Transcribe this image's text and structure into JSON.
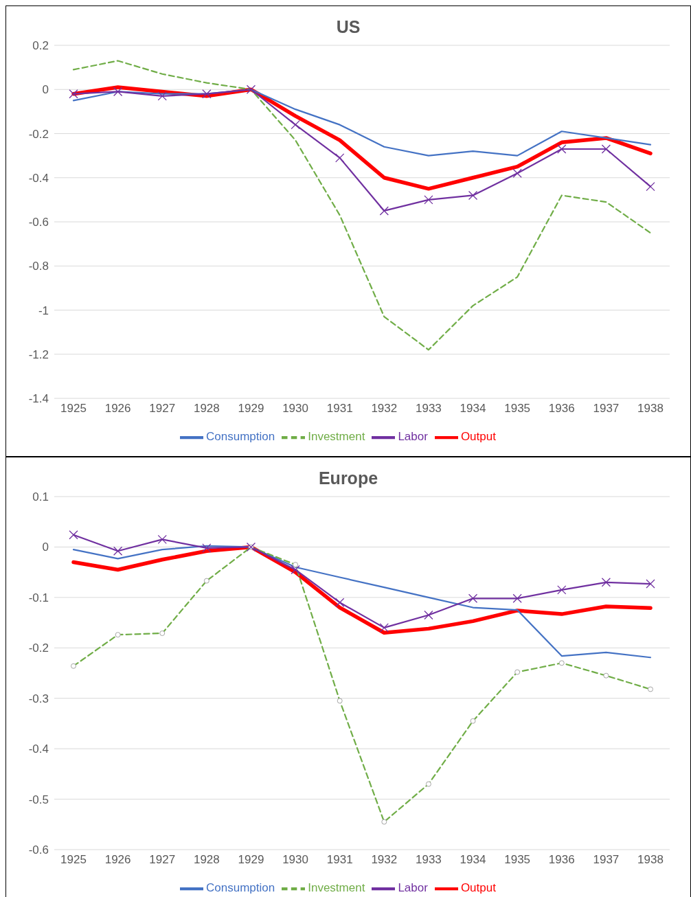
{
  "chart_data": [
    {
      "type": "line",
      "title": "US",
      "categories": [
        "1925",
        "1926",
        "1927",
        "1928",
        "1929",
        "1930",
        "1931",
        "1932",
        "1933",
        "1934",
        "1935",
        "1936",
        "1937",
        "1938"
      ],
      "ylim": [
        -1.4,
        0.2
      ],
      "yticks": [
        -1.4,
        -1.2,
        -1,
        -0.8,
        -0.6,
        -0.4,
        -0.2,
        0,
        0.2
      ],
      "grid": "y",
      "legend": "bottom",
      "series": [
        {
          "name": "Output",
          "color": "#ff0000",
          "line_style": "solid",
          "marker": "none",
          "values": [
            -0.02,
            0.01,
            -0.01,
            -0.03,
            0,
            -0.12,
            -0.23,
            -0.4,
            -0.45,
            -0.4,
            -0.35,
            -0.24,
            -0.22,
            -0.29
          ]
        },
        {
          "name": "Consumption",
          "color": "#4472c4",
          "line_style": "solid",
          "marker": "none",
          "values": [
            -0.05,
            -0.01,
            -0.02,
            -0.02,
            0,
            -0.09,
            -0.16,
            -0.26,
            -0.3,
            -0.28,
            -0.3,
            -0.19,
            -0.22,
            -0.25
          ]
        },
        {
          "name": "Investment",
          "color": "#70ad47",
          "line_style": "dashed",
          "marker": "none",
          "values": [
            0.09,
            0.13,
            0.07,
            0.03,
            0,
            -0.23,
            -0.57,
            -1.03,
            -1.18,
            -0.98,
            -0.85,
            -0.48,
            -0.51,
            -0.65
          ]
        },
        {
          "name": "Labor",
          "color": "#7030a0",
          "line_style": "solid",
          "marker": "cross",
          "values": [
            -0.02,
            -0.01,
            -0.03,
            -0.02,
            0,
            -0.16,
            -0.31,
            -0.55,
            -0.5,
            -0.48,
            -0.38,
            -0.27,
            -0.27,
            -0.44
          ]
        }
      ]
    },
    {
      "type": "line",
      "title": "Europe",
      "categories": [
        "1925",
        "1926",
        "1927",
        "1928",
        "1929",
        "1930",
        "1931",
        "1932",
        "1933",
        "1934",
        "1935",
        "1936",
        "1937",
        "1938"
      ],
      "ylim": [
        -0.6,
        0.1
      ],
      "yticks": [
        -0.6,
        -0.5,
        -0.4,
        -0.3,
        -0.2,
        -0.1,
        0,
        0.1
      ],
      "grid": "y",
      "legend": "bottom",
      "series": [
        {
          "name": "Output",
          "color": "#ff0000",
          "line_style": "solid",
          "marker": "none",
          "values": [
            -0.03,
            -0.045,
            -0.025,
            -0.008,
            0,
            -0.05,
            -0.12,
            -0.17,
            -0.162,
            -0.147,
            -0.126,
            -0.133,
            -0.118,
            -0.121
          ]
        },
        {
          "name": "Consumption",
          "color": "#4472c4",
          "line_style": "solid",
          "marker": "none",
          "values": [
            -0.005,
            -0.023,
            -0.005,
            0.002,
            0,
            -0.04,
            -0.06,
            -0.08,
            -0.1,
            -0.12,
            -0.125,
            -0.216,
            -0.209,
            -0.219
          ]
        },
        {
          "name": "Investment",
          "color": "#70ad47",
          "line_style": "dashed",
          "marker": "circle",
          "values": [
            -0.236,
            -0.174,
            -0.171,
            -0.067,
            0,
            -0.035,
            -0.305,
            -0.545,
            -0.47,
            -0.345,
            -0.248,
            -0.23,
            -0.255,
            -0.282
          ]
        },
        {
          "name": "Labor",
          "color": "#7030a0",
          "line_style": "solid",
          "marker": "cross",
          "values": [
            0.024,
            -0.008,
            0.015,
            -0.002,
            0,
            -0.045,
            -0.11,
            -0.16,
            -0.135,
            -0.102,
            -0.102,
            -0.085,
            -0.07,
            -0.073
          ]
        }
      ]
    }
  ]
}
